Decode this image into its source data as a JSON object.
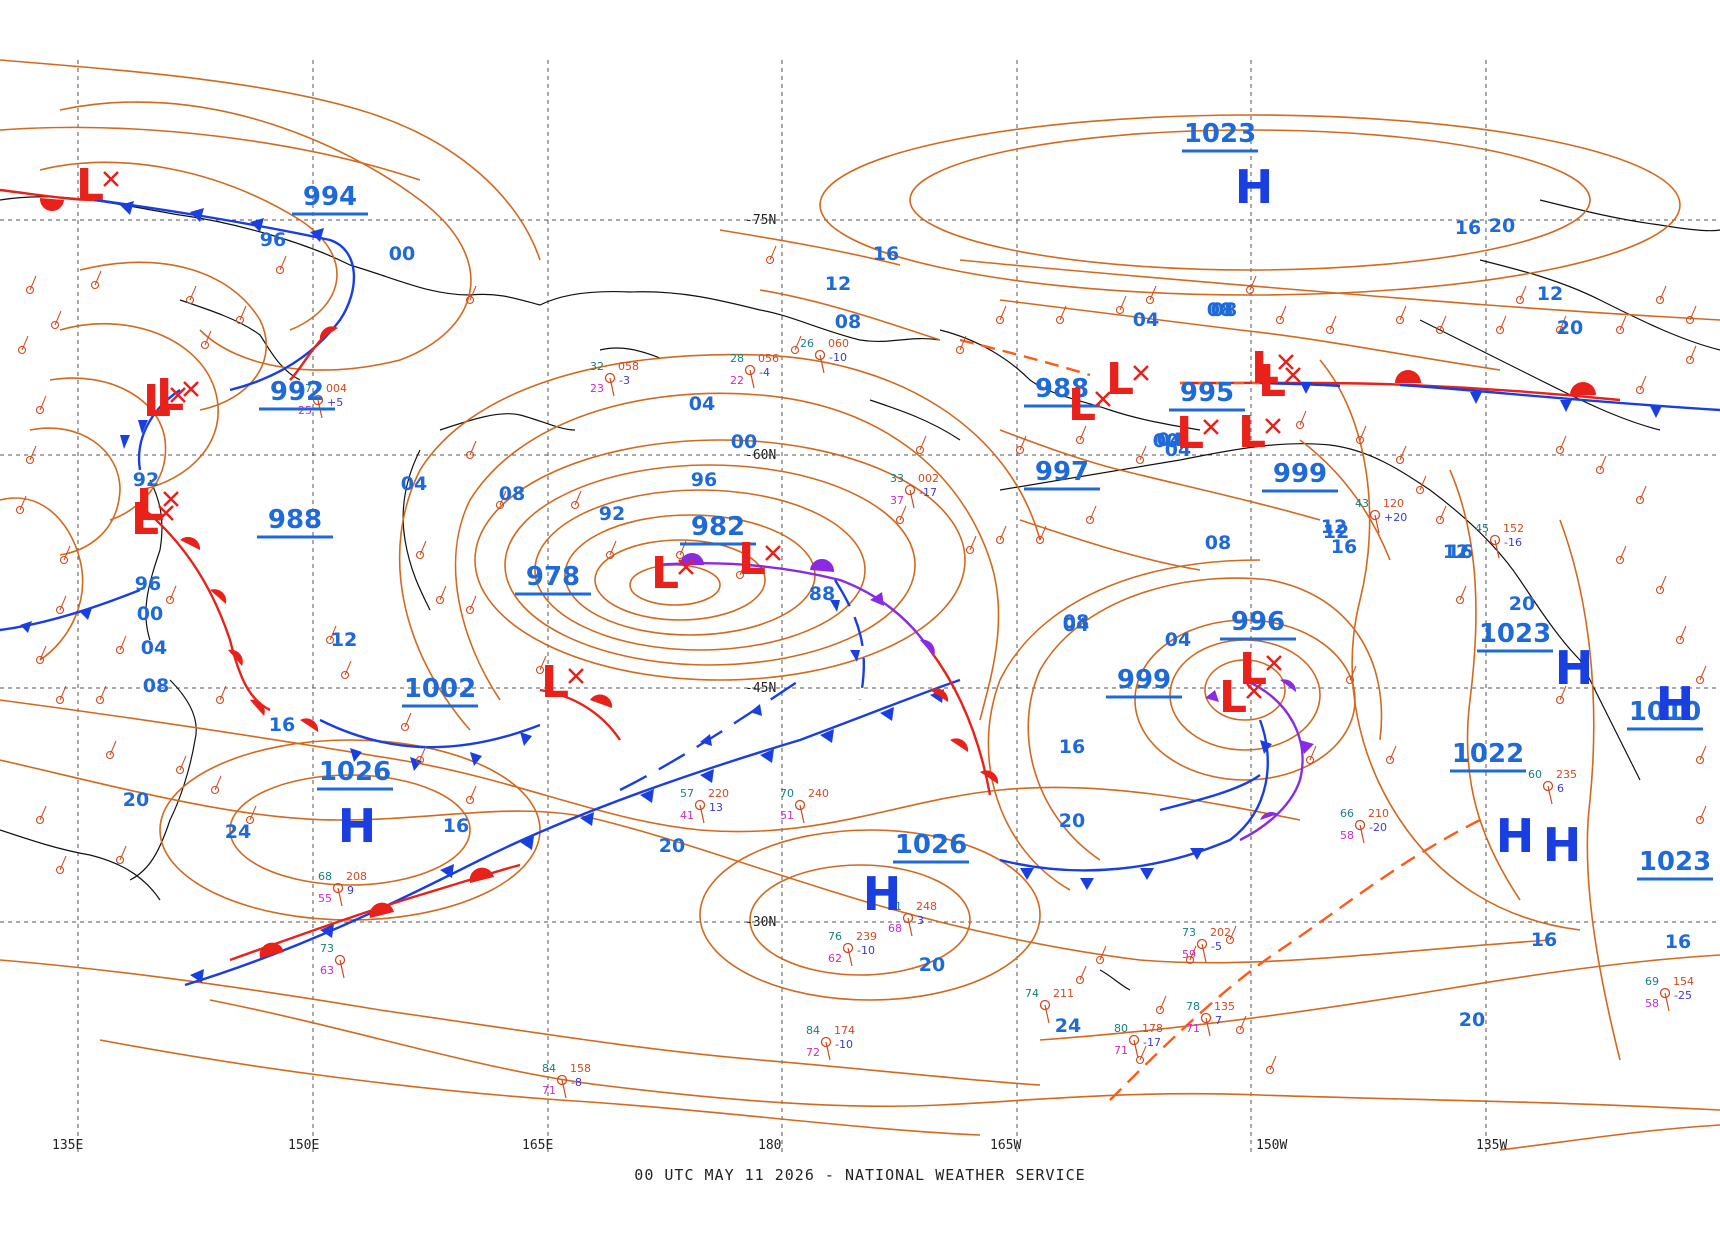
{
  "caption": "00 UTC MAY 11 2026 - NATIONAL WEATHER SERVICE",
  "colors": {
    "isobar": "#d2691e",
    "label": "#1f6ad8",
    "high": "#1a3fe0",
    "low": "#e8211a",
    "cold_front": "#1a3fe0",
    "warm_front": "#e8211a",
    "occluded_front": "#8a2be2",
    "trough": "#ff5a1a",
    "grid": "#555555",
    "coast": "#111111"
  },
  "grid": {
    "latitudes": [
      "75N",
      "60N",
      "45N",
      "30N"
    ],
    "longitudes": [
      "135E",
      "150E",
      "165E",
      "180",
      "165W",
      "150W",
      "135W"
    ]
  },
  "pressure_centers": [
    {
      "type": "L",
      "value": "994"
    },
    {
      "type": "L",
      "value": "992"
    },
    {
      "type": "L",
      "value": "988"
    },
    {
      "type": "L",
      "value": "982"
    },
    {
      "type": "L",
      "value": "978"
    },
    {
      "type": "L",
      "value": "1002"
    },
    {
      "type": "H",
      "value": "1026"
    },
    {
      "type": "H",
      "value": "1026"
    },
    {
      "type": "H",
      "value": "1023"
    },
    {
      "type": "L",
      "value": "988"
    },
    {
      "type": "L",
      "value": "995"
    },
    {
      "type": "L",
      "value": "997"
    },
    {
      "type": "L",
      "value": "999"
    },
    {
      "type": "L",
      "value": "996"
    },
    {
      "type": "L",
      "value": "999"
    },
    {
      "type": "H",
      "value": "1023"
    },
    {
      "type": "H",
      "value": "1022"
    },
    {
      "type": "H",
      "value": "1023"
    },
    {
      "type": "H",
      "value": "1010"
    }
  ],
  "isobar_labels": [
    "96",
    "00",
    "92",
    "96",
    "00",
    "04",
    "08",
    "16",
    "12",
    "20",
    "24",
    "04",
    "08",
    "12",
    "16",
    "20",
    "04",
    "00",
    "96",
    "92",
    "88",
    "08",
    "04",
    "00",
    "20",
    "16",
    "12",
    "08",
    "04",
    "08",
    "12",
    "16",
    "20",
    "24",
    "20",
    "16",
    "20",
    "16",
    "12",
    "20",
    "16",
    "16",
    "20",
    "12",
    "08",
    "04",
    "08",
    "12",
    "16",
    "04",
    "00",
    "04"
  ],
  "station_samples": [
    {
      "t": "47",
      "p": "004",
      "d": "25",
      "tend": "+5"
    },
    {
      "t": "32",
      "p": "058",
      "d": "23",
      "tend": "-3"
    },
    {
      "t": "28",
      "p": "056",
      "d": "22",
      "tend": "-4"
    },
    {
      "t": "26",
      "p": "060",
      "d": "",
      "tend": "-10"
    },
    {
      "t": "33",
      "p": "002",
      "d": "37",
      "tend": "-17"
    },
    {
      "t": "43",
      "p": "120",
      "d": "",
      "tend": "+20"
    },
    {
      "t": "45",
      "p": "152",
      "d": "",
      "tend": "-16"
    },
    {
      "t": "57",
      "p": "220",
      "d": "41",
      "tend": "13"
    },
    {
      "t": "70",
      "p": "240",
      "d": "51",
      "tend": ""
    },
    {
      "t": "66",
      "p": "210",
      "d": "58",
      "tend": "-20"
    },
    {
      "t": "81",
      "p": "248",
      "d": "68",
      "tend": "3"
    },
    {
      "t": "76",
      "p": "239",
      "d": "62",
      "tend": "-10"
    },
    {
      "t": "74",
      "p": "211",
      "d": "",
      "tend": ""
    },
    {
      "t": "73",
      "p": "202",
      "d": "59",
      "tend": "-5"
    },
    {
      "t": "84",
      "p": "158",
      "d": "71",
      "tend": "-8"
    },
    {
      "t": "84",
      "p": "174",
      "d": "72",
      "tend": "-10"
    },
    {
      "t": "80",
      "p": "178",
      "d": "71",
      "tend": "-17"
    },
    {
      "t": "78",
      "p": "135",
      "d": "71",
      "tend": "7"
    },
    {
      "t": "69",
      "p": "154",
      "d": "58",
      "tend": "-25"
    },
    {
      "t": "60",
      "p": "235",
      "d": "",
      "tend": "6"
    },
    {
      "t": "68",
      "p": "208",
      "d": "55",
      "tend": "9"
    },
    {
      "t": "73",
      "p": "",
      "d": "63",
      "tend": ""
    }
  ]
}
